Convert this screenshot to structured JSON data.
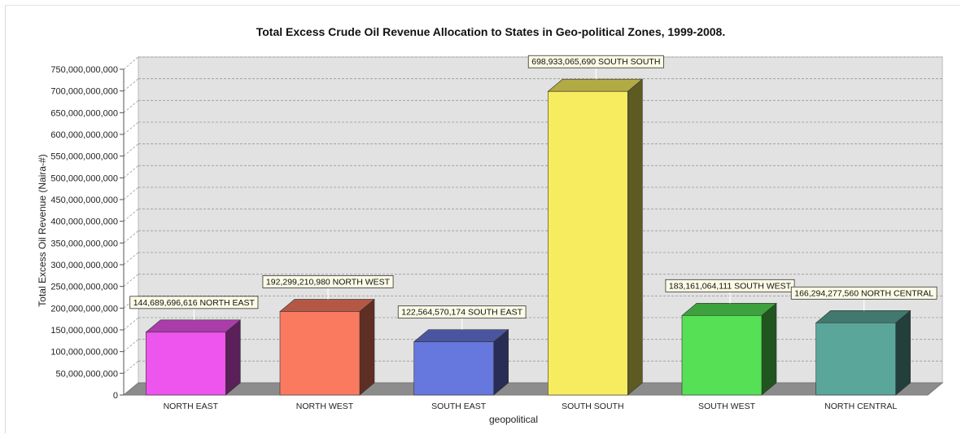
{
  "chart_data": {
    "type": "bar",
    "title": "Total Excess Crude Oil Revenue Allocation to States in Geo-political Zones, 1999-2008.",
    "xlabel": "geopolitical",
    "ylabel": "Total Excess Oil Revenue (Naira-#)",
    "ylim": [
      0,
      750000000000
    ],
    "ytick_step": 50000000000,
    "yticks": [
      "0",
      "50,000,000,000",
      "100,000,000,000",
      "150,000,000,000",
      "200,000,000,000",
      "250,000,000,000",
      "300,000,000,000",
      "350,000,000,000",
      "400,000,000,000",
      "450,000,000,000",
      "500,000,000,000",
      "550,000,000,000",
      "600,000,000,000",
      "650,000,000,000",
      "700,000,000,000",
      "750,000,000,000"
    ],
    "categories": [
      "NORTH EAST",
      "NORTH WEST",
      "SOUTH EAST",
      "SOUTH SOUTH",
      "SOUTH WEST",
      "NORTH CENTRAL"
    ],
    "values": [
      144689696616,
      192299210980,
      122564570174,
      698933065690,
      183161064111,
      166294277560
    ],
    "data_labels": [
      "144,689,696,616 NORTH EAST",
      "192,299,210,980 NORTH WEST",
      "122,564,570,174 SOUTH EAST",
      "698,933,065,690 SOUTH SOUTH",
      "183,161,064,111 SOUTH WEST",
      "166,294,277,560 NORTH CENTRAL"
    ],
    "colors": [
      "#ee55ee",
      "#fa7a60",
      "#6677dd",
      "#f7ec60",
      "#55e055",
      "#5aa69a"
    ],
    "grid": true,
    "legend": "none",
    "style": "3d"
  }
}
